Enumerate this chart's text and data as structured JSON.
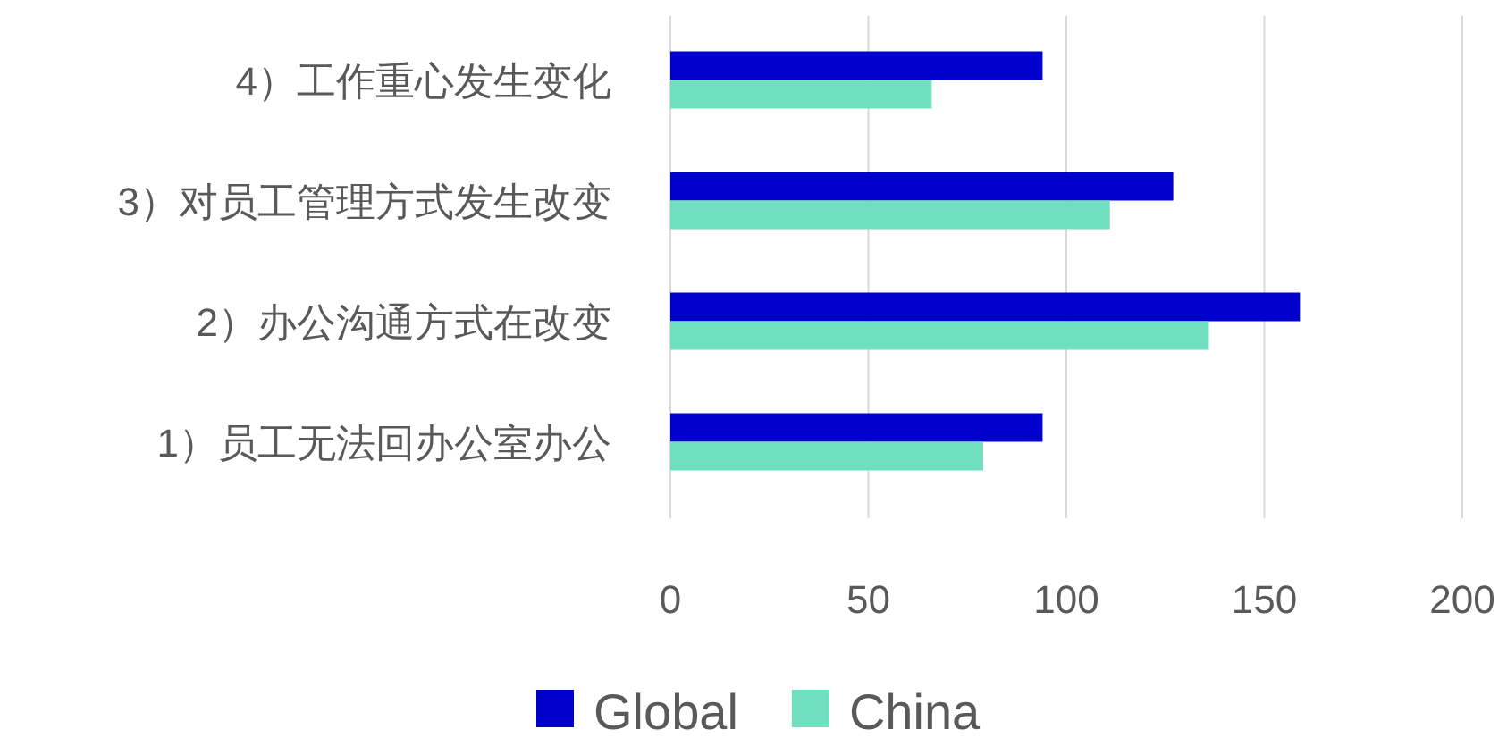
{
  "chart_data": {
    "type": "bar",
    "orientation": "horizontal",
    "categories": [
      "4）工作重心发生变化",
      "3）对员工管理方式发生改变",
      "2）办公沟通方式在改变",
      "1）员工无法回办公室办公"
    ],
    "series": [
      {
        "name": "Global",
        "color": "#0000cc",
        "values": [
          94,
          127,
          159,
          94
        ]
      },
      {
        "name": "China",
        "color": "#70dfbf",
        "values": [
          66,
          111,
          136,
          79
        ]
      }
    ],
    "xlim": [
      0,
      200
    ],
    "xticks": [
      0,
      50,
      100,
      150,
      200
    ],
    "grid": "x",
    "legend": "bottom"
  }
}
